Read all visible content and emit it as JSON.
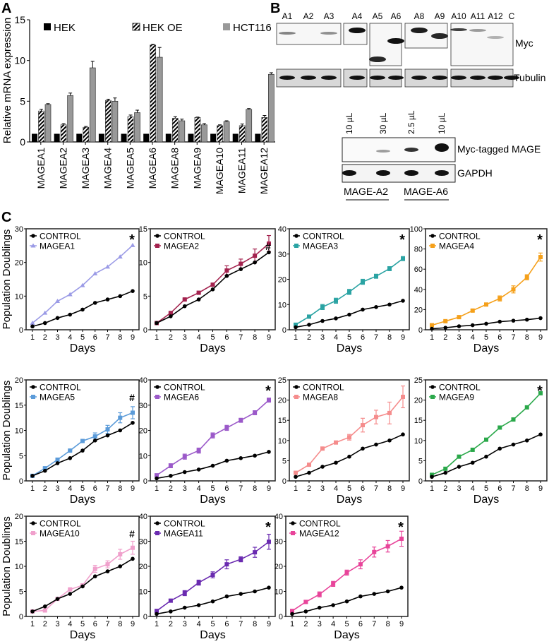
{
  "panel_labels": {
    "a": "A",
    "b": "B",
    "c": "C"
  },
  "blots": {
    "top_lanes": [
      "A1",
      "A2",
      "A3",
      "A4",
      "A5",
      "A6",
      "A8",
      "A9",
      "A10",
      "A11",
      "A12",
      "C"
    ],
    "myc_label": "Myc",
    "tubulin_label": "Tubulin",
    "bottom_lanes": [
      "10 µL",
      "30 µL",
      "2.5 µL",
      "10 µL"
    ],
    "myc_tagged_label": "Myc-tagged MAGE",
    "gapdh_label": "GAPDH",
    "groups": [
      "MAGE-A2",
      "MAGE-A6"
    ]
  },
  "chart_data": [
    {
      "type": "bar",
      "title": "",
      "xlabel": "",
      "ylabel": "Relative mRNA expression",
      "ylim": [
        0,
        15
      ],
      "yticks": [
        "0",
        "5",
        "10",
        "15"
      ],
      "legend_position": "top",
      "categories": [
        "MAGEA1",
        "MAGEA2",
        "MAGEA3",
        "MAGEA4",
        "MAGEA5",
        "MAGEA6",
        "MAGEA8",
        "MAGEA9",
        "MAGEA10",
        "MAGEA11",
        "MAGEA12"
      ],
      "series": [
        {
          "name": "HEK",
          "color": "#000000",
          "values": [
            1,
            1,
            1,
            1,
            1,
            1,
            1,
            1,
            1,
            1,
            1
          ],
          "errors": [
            0,
            0,
            0,
            0,
            0,
            0,
            0,
            0,
            0,
            0,
            0
          ]
        },
        {
          "name": "HEK OE",
          "color": "hatched",
          "values": [
            3.8,
            2.1,
            1.8,
            5.1,
            3.1,
            11.9,
            2.9,
            3.0,
            2.0,
            2.0,
            3.0
          ],
          "errors": [
            0.2,
            0.15,
            0.1,
            0.15,
            0.2,
            0.1,
            0.2,
            0.05,
            0.1,
            0.2,
            0.25
          ]
        },
        {
          "name": "HCT116",
          "color": "#999999",
          "values": [
            4.6,
            5.7,
            9.1,
            5.0,
            3.6,
            10.4,
            2.6,
            2.1,
            2.5,
            4.0,
            8.3
          ],
          "errors": [
            0.1,
            0.3,
            0.8,
            0.4,
            0.3,
            1.2,
            0.2,
            0.15,
            0.1,
            0.1,
            0.2
          ]
        }
      ]
    },
    {
      "type": "line",
      "ylabel": "Population Doublings",
      "xlabel": "Days",
      "x": [
        1,
        2,
        3,
        4,
        5,
        6,
        7,
        8,
        9
      ],
      "ylim": [
        0,
        30
      ],
      "yticks": [
        "0",
        "10",
        "20",
        "30"
      ],
      "annotation": "*",
      "legend_position": "top-left",
      "series": [
        {
          "name": "CONTROL",
          "color": "#000000",
          "marker": "circle",
          "values": [
            1,
            2,
            3.5,
            4.5,
            6,
            8,
            9,
            10,
            11.5
          ]
        },
        {
          "name": "MAGEA1",
          "color": "#9b9be6",
          "marker": "triangle",
          "values": [
            2,
            5,
            8.5,
            10.5,
            13.2,
            16.7,
            18.7,
            21.7,
            25.1
          ],
          "errors": [
            0,
            0,
            0,
            0,
            0,
            0,
            0,
            0,
            0
          ]
        }
      ]
    },
    {
      "type": "line",
      "ylabel": "",
      "xlabel": "Days",
      "x": [
        1,
        2,
        3,
        4,
        5,
        6,
        7,
        8,
        9
      ],
      "ylim": [
        0,
        15
      ],
      "yticks": [
        "0",
        "5",
        "10",
        "15"
      ],
      "annotation": "#",
      "legend_position": "top-left",
      "series": [
        {
          "name": "CONTROL",
          "color": "#000000",
          "marker": "circle",
          "values": [
            1,
            2,
            3.5,
            4.5,
            6,
            8,
            9,
            10,
            11.5
          ]
        },
        {
          "name": "MAGEA2",
          "color": "#a3224e",
          "marker": "square",
          "values": [
            1,
            2.5,
            4.5,
            5.5,
            6.7,
            8.8,
            9.8,
            11,
            12.8
          ],
          "errors": [
            0,
            0.1,
            0.1,
            0.1,
            0.1,
            0.7,
            0.7,
            1,
            1.2
          ]
        }
      ]
    },
    {
      "type": "line",
      "ylabel": "",
      "xlabel": "Days",
      "x": [
        1,
        2,
        3,
        4,
        5,
        6,
        7,
        8,
        9
      ],
      "ylim": [
        0,
        40
      ],
      "yticks": [
        "0",
        "10",
        "20",
        "30",
        "40"
      ],
      "annotation": "*",
      "legend_position": "top-left",
      "series": [
        {
          "name": "CONTROL",
          "color": "#000000",
          "marker": "circle",
          "values": [
            1,
            2,
            3.5,
            4.5,
            6,
            8,
            9,
            10,
            11.5
          ]
        },
        {
          "name": "MAGEA3",
          "color": "#2aa3a3",
          "marker": "square",
          "values": [
            2,
            5.2,
            9,
            11.5,
            15,
            19,
            21.2,
            24.2,
            28.2
          ],
          "errors": [
            0.3,
            0.5,
            1,
            1,
            1,
            1,
            0.8,
            0.8,
            0.8
          ]
        }
      ]
    },
    {
      "type": "line",
      "ylabel": "",
      "xlabel": "Days",
      "x": [
        1,
        2,
        3,
        4,
        5,
        6,
        7,
        8,
        9
      ],
      "ylim": [
        0,
        100
      ],
      "yticks": [
        "0",
        "20",
        "40",
        "60",
        "80",
        "100"
      ],
      "annotation": "*",
      "legend_position": "top-left",
      "series": [
        {
          "name": "CONTROL",
          "color": "#000000",
          "marker": "circle",
          "values": [
            1,
            2,
            3.5,
            4.5,
            6,
            8,
            9,
            10,
            11.5
          ]
        },
        {
          "name": "MAGEA4",
          "color": "#f5a01a",
          "marker": "square",
          "values": [
            4.5,
            8.5,
            12.5,
            19,
            25,
            31,
            40,
            52,
            72
          ],
          "errors": [
            0.5,
            0.8,
            1,
            1,
            1.2,
            2.5,
            3.5,
            2.5,
            4
          ]
        }
      ]
    },
    {
      "type": "line",
      "ylabel": "Population Doublings",
      "xlabel": "Days",
      "x": [
        1,
        2,
        3,
        4,
        5,
        6,
        7,
        8,
        9
      ],
      "ylim": [
        0,
        20
      ],
      "yticks": [
        "0",
        "5",
        "10",
        "15",
        "20"
      ],
      "annotation": "#",
      "legend_position": "top-left",
      "series": [
        {
          "name": "CONTROL",
          "color": "#000000",
          "marker": "circle",
          "values": [
            1,
            2,
            3.5,
            4.5,
            6,
            8,
            9,
            10,
            11.5
          ]
        },
        {
          "name": "MAGEA5",
          "color": "#5b9bd9",
          "marker": "square",
          "values": [
            1,
            2.5,
            4.2,
            6,
            7.9,
            8.8,
            10.2,
            12.5,
            13.5
          ],
          "errors": [
            0,
            0.1,
            0.2,
            0.1,
            0.2,
            0.7,
            0.8,
            1,
            1.2
          ]
        }
      ]
    },
    {
      "type": "line",
      "ylabel": "",
      "xlabel": "Days",
      "x": [
        1,
        2,
        3,
        4,
        5,
        6,
        7,
        8,
        9
      ],
      "ylim": [
        0,
        40
      ],
      "yticks": [
        "0",
        "10",
        "20",
        "30",
        "40"
      ],
      "annotation": "*",
      "legend_position": "top-left",
      "series": [
        {
          "name": "CONTROL",
          "color": "#000000",
          "marker": "circle",
          "values": [
            1,
            2,
            3.5,
            4.5,
            6,
            8,
            9,
            10,
            11.5
          ]
        },
        {
          "name": "MAGEA6",
          "color": "#9b59c9",
          "marker": "square",
          "values": [
            2.2,
            6,
            9.6,
            12,
            18,
            21,
            24,
            27,
            32
          ],
          "errors": [
            0.3,
            0.8,
            1,
            1,
            1,
            1,
            0.8,
            0.8,
            0.8
          ]
        }
      ]
    },
    {
      "type": "line",
      "ylabel": "",
      "xlabel": "Days",
      "x": [
        1,
        2,
        3,
        4,
        5,
        6,
        7,
        8,
        9
      ],
      "ylim": [
        0,
        25
      ],
      "yticks": [
        "0",
        "5",
        "10",
        "15",
        "20",
        "25"
      ],
      "annotation": "",
      "legend_position": "top-left",
      "series": [
        {
          "name": "CONTROL",
          "color": "#000000",
          "marker": "circle",
          "values": [
            1,
            2,
            3.5,
            4.5,
            6,
            8,
            9,
            10,
            11.5
          ]
        },
        {
          "name": "MAGEA8",
          "color": "#f58c8c",
          "marker": "square",
          "values": [
            2,
            4,
            8,
            9.5,
            10.8,
            13.8,
            15.8,
            16.8,
            20.8
          ],
          "errors": [
            0,
            0,
            0,
            0,
            0.7,
            1.7,
            1.7,
            2.7,
            2.7
          ]
        }
      ]
    },
    {
      "type": "line",
      "ylabel": "",
      "xlabel": "Days",
      "x": [
        1,
        2,
        3,
        4,
        5,
        6,
        7,
        8,
        9
      ],
      "ylim": [
        0,
        25
      ],
      "yticks": [
        "0",
        "5",
        "10",
        "15",
        "20",
        "25"
      ],
      "annotation": "*",
      "legend_position": "top-left",
      "series": [
        {
          "name": "CONTROL",
          "color": "#000000",
          "marker": "circle",
          "values": [
            1,
            2,
            3.5,
            4.5,
            6,
            8,
            9,
            10,
            11.5
          ]
        },
        {
          "name": "MAGEA9",
          "color": "#2aa84a",
          "marker": "square",
          "values": [
            1.5,
            3,
            6,
            7.7,
            10.2,
            13.2,
            15.2,
            18.2,
            21.7
          ],
          "errors": [
            0,
            0,
            0,
            0,
            0,
            0,
            0,
            0,
            0
          ]
        }
      ]
    },
    {
      "type": "line",
      "ylabel": "Population Doublings",
      "xlabel": "Days",
      "x": [
        1,
        2,
        3,
        4,
        5,
        6,
        7,
        8,
        9
      ],
      "ylim": [
        0,
        20
      ],
      "yticks": [
        "0",
        "5",
        "10",
        "15",
        "20"
      ],
      "annotation": "#",
      "legend_position": "top-left",
      "series": [
        {
          "name": "CONTROL",
          "color": "#000000",
          "marker": "circle",
          "values": [
            1,
            2,
            3.5,
            4.5,
            6,
            8,
            9,
            10,
            11.5
          ]
        },
        {
          "name": "MAGEA10",
          "color": "#f0a0cc",
          "marker": "square",
          "values": [
            1,
            1.2,
            3.5,
            5.4,
            6.2,
            9.5,
            10.4,
            12.4,
            13.7
          ],
          "errors": [
            0,
            0.2,
            0.1,
            0.1,
            0.2,
            0.7,
            0.7,
            1,
            1.3
          ]
        }
      ]
    },
    {
      "type": "line",
      "ylabel": "",
      "xlabel": "Days",
      "x": [
        1,
        2,
        3,
        4,
        5,
        6,
        7,
        8,
        9
      ],
      "ylim": [
        0,
        40
      ],
      "yticks": [
        "0",
        "10",
        "20",
        "30",
        "40"
      ],
      "annotation": "*",
      "legend_position": "top-left",
      "series": [
        {
          "name": "CONTROL",
          "color": "#000000",
          "marker": "circle",
          "values": [
            1,
            2,
            3.5,
            4.5,
            6,
            8,
            9,
            10,
            11.5
          ]
        },
        {
          "name": "MAGEA11",
          "color": "#6a2bb0",
          "marker": "square",
          "values": [
            2.2,
            6.3,
            9.3,
            13.5,
            16.6,
            20.8,
            22.8,
            25.6,
            29.8
          ],
          "errors": [
            0.3,
            0.6,
            1,
            1,
            1.2,
            1.8,
            1,
            2,
            3
          ]
        }
      ]
    },
    {
      "type": "line",
      "ylabel": "",
      "xlabel": "Days",
      "x": [
        1,
        2,
        3,
        4,
        5,
        6,
        7,
        8,
        9
      ],
      "ylim": [
        0,
        40
      ],
      "yticks": [
        "0",
        "10",
        "20",
        "30",
        "40"
      ],
      "annotation": "*",
      "legend_position": "top-left",
      "series": [
        {
          "name": "CONTROL",
          "color": "#000000",
          "marker": "circle",
          "values": [
            1,
            2,
            3.5,
            4.5,
            6,
            8,
            9,
            10,
            11.5
          ]
        },
        {
          "name": "MAGEA12",
          "color": "#e8449a",
          "marker": "square",
          "values": [
            2.2,
            5.8,
            8.8,
            13,
            17.5,
            20.8,
            25.7,
            28,
            31
          ],
          "errors": [
            0.3,
            0.6,
            1,
            1,
            1,
            1.8,
            2,
            2.3,
            3
          ]
        }
      ]
    }
  ]
}
